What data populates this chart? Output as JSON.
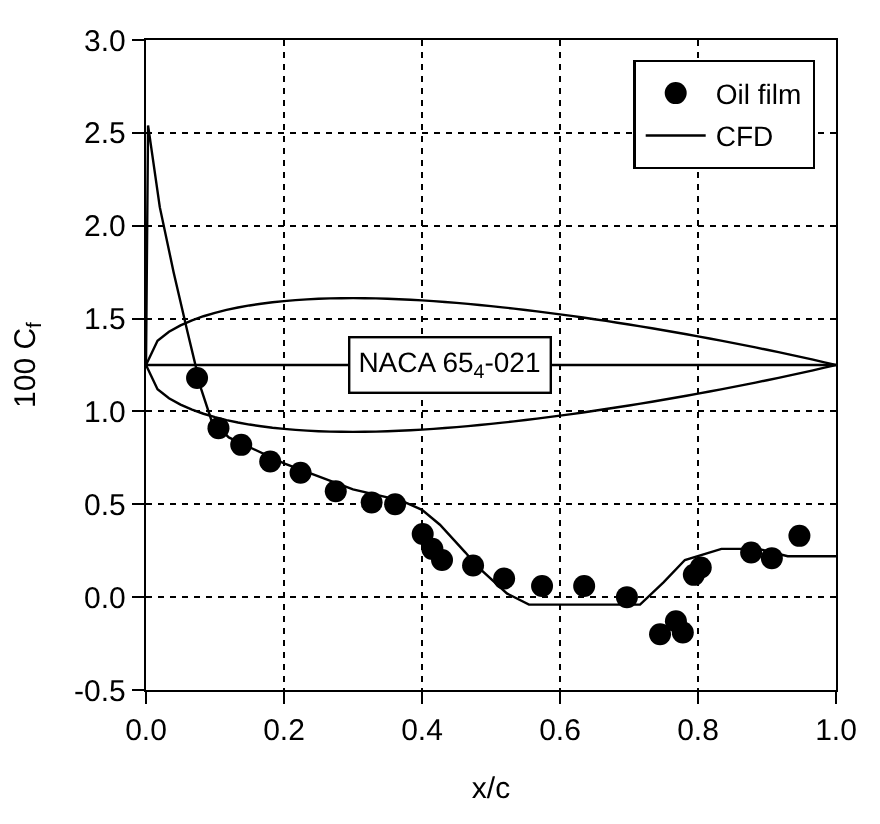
{
  "chart_data": {
    "type": "line",
    "xlabel": "x/c",
    "ylabel": "100 C$_{f}$",
    "xlim": [
      0,
      1
    ],
    "xticks": [
      {
        "value": 0,
        "label": "0.0"
      },
      0.2,
      0.4,
      0.6,
      0.8,
      {
        "value": 1,
        "label": "1.0"
      }
    ],
    "ylim": [
      -0.5,
      3
    ],
    "yticks": [
      -0.5,
      {
        "value": 0,
        "label": "0.0"
      },
      0.5,
      {
        "value": 1,
        "label": "1.0"
      },
      1.5,
      {
        "value": 2,
        "label": "2.0"
      },
      2.5,
      {
        "value": 3,
        "label": "3.0"
      }
    ],
    "grid": true,
    "legend": "top right",
    "annotations": [
      "NACA 65$_{4}$-021"
    ],
    "ref_lines": [
      {
        "axis": "y",
        "value": 1.25,
        "color": "#000000",
        "line_style": "solid"
      }
    ],
    "series": [
      {
        "name": "Oil film",
        "type": "scatter",
        "marker": "circle",
        "color": "#000000",
        "x": [
          0.074,
          0.105,
          0.138,
          0.18,
          0.224,
          0.275,
          0.327,
          0.361,
          0.401,
          0.415,
          0.429,
          0.474,
          0.519,
          0.574,
          0.635,
          0.697,
          0.745,
          0.768,
          0.778,
          0.794,
          0.804,
          0.877,
          0.907,
          0.947
        ],
        "values": [
          1.18,
          0.91,
          0.82,
          0.73,
          0.67,
          0.57,
          0.51,
          0.5,
          0.34,
          0.26,
          0.2,
          0.17,
          0.1,
          0.06,
          0.06,
          0.0,
          -0.2,
          -0.13,
          -0.19,
          0.12,
          0.16,
          0.24,
          0.21,
          0.33
        ]
      },
      {
        "name": "CFD",
        "marker": "none",
        "line_style": "solid",
        "color": "#000000",
        "x": [
          0,
          0.003,
          0.02,
          0.04,
          0.06,
          0.08,
          0.095,
          0.12,
          0.2,
          0.3,
          0.37,
          0.4,
          0.426,
          0.463,
          0.479,
          0.523,
          0.555,
          0.6,
          0.716,
          0.75,
          0.781,
          0.834,
          0.887,
          0.93,
          1.0
        ],
        "values": [
          1.25,
          2.54,
          2.1,
          1.75,
          1.43,
          1.12,
          0.95,
          0.86,
          0.72,
          0.58,
          0.52,
          0.47,
          0.39,
          0.24,
          0.17,
          0.02,
          -0.04,
          -0.04,
          -0.04,
          0.08,
          0.2,
          0.26,
          0.26,
          0.22,
          0.22
        ]
      }
    ]
  }
}
